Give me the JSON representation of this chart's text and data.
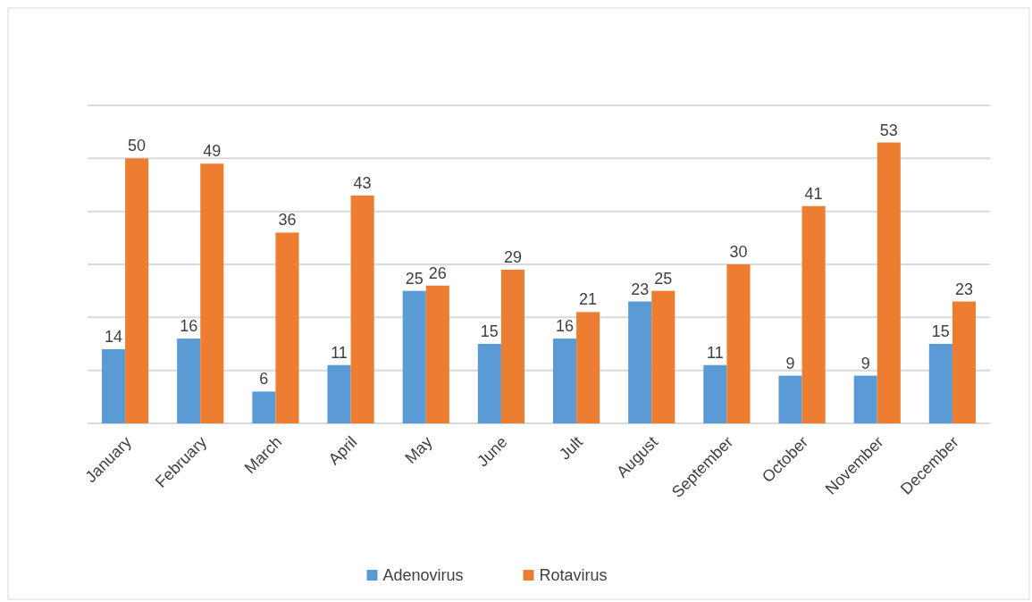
{
  "chart_data": {
    "type": "bar",
    "categories": [
      "January",
      "February",
      "March",
      "April",
      "May",
      "June",
      "Jult",
      "August",
      "September",
      "October",
      "November",
      "December"
    ],
    "series": [
      {
        "name": "Adenovirus",
        "color": "#5b9bd5",
        "values": [
          14,
          16,
          6,
          11,
          25,
          15,
          16,
          23,
          11,
          9,
          9,
          15
        ]
      },
      {
        "name": "Rotavirus",
        "color": "#ed7d31",
        "values": [
          50,
          49,
          36,
          43,
          26,
          29,
          21,
          25,
          30,
          41,
          53,
          23
        ]
      }
    ],
    "ylim": [
      0,
      60
    ],
    "yticks": [
      {
        "value": 0,
        "label": null
      },
      {
        "value": 10,
        "label": null
      },
      {
        "value": 20,
        "label": null
      },
      {
        "value": 30,
        "label": null
      },
      {
        "value": 40,
        "label": null
      },
      {
        "value": 50,
        "label": null
      },
      {
        "value": 60,
        "label": null
      }
    ],
    "tick_labels": "x",
    "grid": "y",
    "data_labels": true,
    "legend": "bottom"
  }
}
